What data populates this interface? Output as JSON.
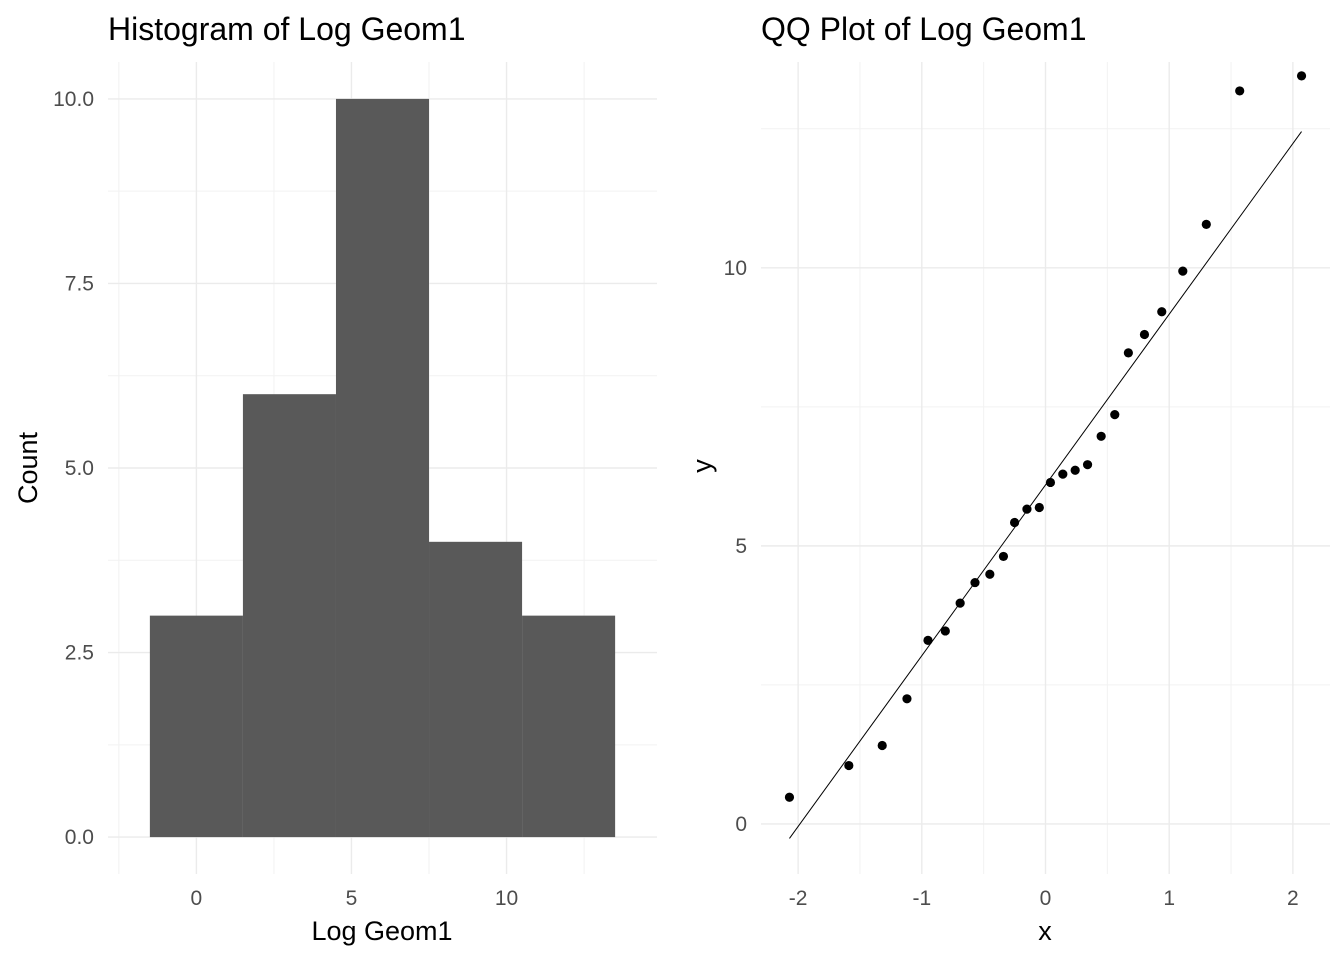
{
  "chart_data": [
    {
      "type": "bar",
      "title": "Histogram of Log Geom1",
      "xlabel": "Log Geom1",
      "ylabel": "Count",
      "bin_edges": [
        -1.5,
        1.5,
        4.5,
        7.5,
        10.5,
        13.5
      ],
      "values": [
        3,
        6,
        10,
        4,
        3
      ],
      "xlim": [
        -2.85,
        14.85
      ],
      "ylim": [
        -0.5,
        10.5
      ],
      "xticks": [
        0,
        5,
        10
      ],
      "xtick_labels": [
        "0",
        "5",
        "10"
      ],
      "yticks": [
        0,
        2.5,
        5,
        7.5,
        10
      ],
      "ytick_labels": [
        "0.0",
        "2.5",
        "5.0",
        "7.5",
        "10.0"
      ],
      "bar_color": "#595959",
      "grid": true
    },
    {
      "type": "scatter",
      "title": "QQ Plot of Log Geom1",
      "xlabel": "x",
      "ylabel": "y",
      "xlim": [
        -2.3,
        2.3
      ],
      "ylim": [
        -0.9,
        13.7
      ],
      "xticks": [
        -2,
        -1,
        0,
        1,
        2
      ],
      "xtick_labels": [
        "-2",
        "-1",
        "0",
        "1",
        "2"
      ],
      "yticks": [
        0,
        5,
        10
      ],
      "ytick_labels": [
        "0",
        "5",
        "10"
      ],
      "points": [
        [
          -2.07,
          0.48
        ],
        [
          -1.59,
          1.05
        ],
        [
          -1.32,
          1.41
        ],
        [
          -1.12,
          2.25
        ],
        [
          -0.95,
          3.3
        ],
        [
          -0.81,
          3.47
        ],
        [
          -0.69,
          3.97
        ],
        [
          -0.57,
          4.34
        ],
        [
          -0.45,
          4.49
        ],
        [
          -0.34,
          4.81
        ],
        [
          -0.25,
          5.42
        ],
        [
          -0.15,
          5.66
        ],
        [
          -0.05,
          5.69
        ],
        [
          0.04,
          6.14
        ],
        [
          0.14,
          6.29
        ],
        [
          0.24,
          6.36
        ],
        [
          0.34,
          6.46
        ],
        [
          0.45,
          6.97
        ],
        [
          0.56,
          7.36
        ],
        [
          0.67,
          8.47
        ],
        [
          0.8,
          8.8
        ],
        [
          0.94,
          9.21
        ],
        [
          1.11,
          9.94
        ],
        [
          1.3,
          10.78
        ],
        [
          1.57,
          13.18
        ],
        [
          2.07,
          13.45
        ]
      ],
      "reference_line": {
        "x": [
          -2.07,
          2.07
        ],
        "y": [
          -0.26,
          12.45
        ]
      },
      "point_color": "#000000",
      "line_color": "#000000",
      "grid": true
    }
  ]
}
